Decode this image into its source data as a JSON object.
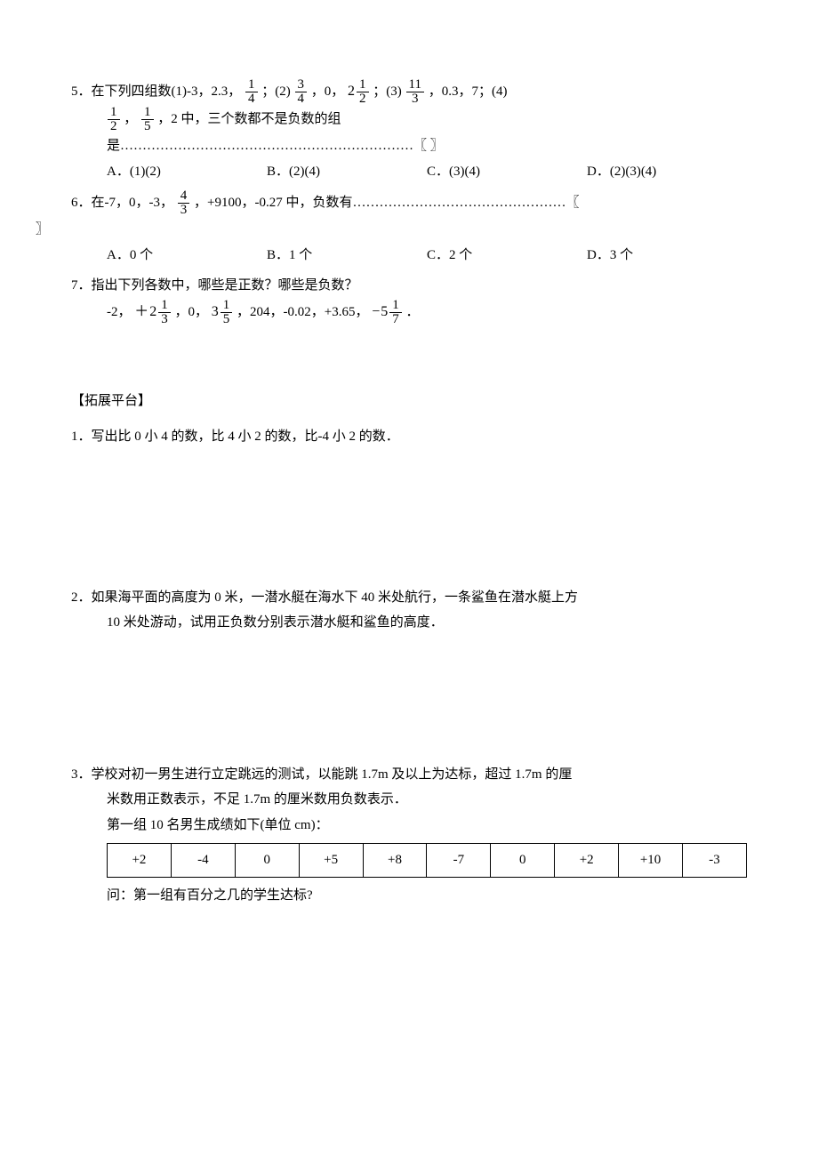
{
  "q5": {
    "stem_prefix": "5．在下列四组数(1)-3，2.3，",
    "f1": {
      "num": "1",
      "den": "4"
    },
    "after_f1": "；(2)",
    "f2": {
      "num": "3",
      "den": "4"
    },
    "after_f2": "，0，",
    "m1_whole": "2",
    "m1_num": "1",
    "m1_den": "2",
    "after_m1": "；(3)",
    "f3": {
      "num": "11",
      "den": "3"
    },
    "after_f3": "，0.3，7；(4)",
    "line2_f4": {
      "num": "1",
      "den": "2"
    },
    "line2_sep": "，",
    "line2_f5": {
      "num": "1",
      "den": "5"
    },
    "line2_tail": "，2 中，三个数都不是负数的组",
    "line3_prefix": "是",
    "line3_dots": "…………………………………………………………",
    "line3_bracket": "〖    〗",
    "options": {
      "A": "A．(1)(2)",
      "B": "B．(2)(4)",
      "C": "C．(3)(4)",
      "D": "D．(2)(3)(4)"
    }
  },
  "q6": {
    "prefix": "6．在-7，0，-3，",
    "frac": {
      "num": "4",
      "den": "3"
    },
    "mid": "，+9100，-0.27 中，负数有",
    "dots": "…………………………………………",
    "bracket_open": "〖",
    "bracket_close": "〗",
    "options": {
      "A": "A．0 个",
      "B": "B．1 个",
      "C": "C．2 个",
      "D": "D．3 个"
    }
  },
  "q7": {
    "stem": "7．指出下列各数中，哪些是正数？哪些是负数？",
    "list_prefix": "-2，",
    "m1_sign": "＋",
    "m1_whole": "2",
    "m1_num": "1",
    "m1_den": "3",
    "after_m1": " ，0，",
    "m2_whole": "3",
    "m2_num": "1",
    "m2_den": "5",
    "after_m2": "，204，-0.02，+3.65，",
    "m3_sign": "−",
    "m3_whole": "5",
    "m3_num": "1",
    "m3_den": "7",
    "tail": "．"
  },
  "sectionA": {
    "title": "【拓展平台】",
    "q1": "1．写出比 0 小 4 的数，比 4 小 2 的数，比-4 小 2 的数．",
    "q2_l1": "2．如果海平面的高度为 0 米，一潜水艇在海水下 40 米处航行，一条鲨鱼在潜水艇上方",
    "q2_l2": "10 米处游动，试用正负数分别表示潜水艇和鲨鱼的高度．",
    "q3_l1": "3．学校对初一男生进行立定跳远的测试，以能跳 1.7m 及以上为达标，超过 1.7m 的厘",
    "q3_l2": "米数用正数表示，不足 1.7m 的厘米数用负数表示．",
    "q3_l3": "第一组 10 名男生成绩如下(单位 cm)：",
    "q3_table": [
      "+2",
      "-4",
      "0",
      "+5",
      "+8",
      "-7",
      "0",
      "+2",
      "+10",
      "-3"
    ],
    "q3_l4": "问：第一组有百分之几的学生达标?"
  },
  "colors": {
    "text": "#000000",
    "background": "#ffffff",
    "border": "#000000"
  }
}
